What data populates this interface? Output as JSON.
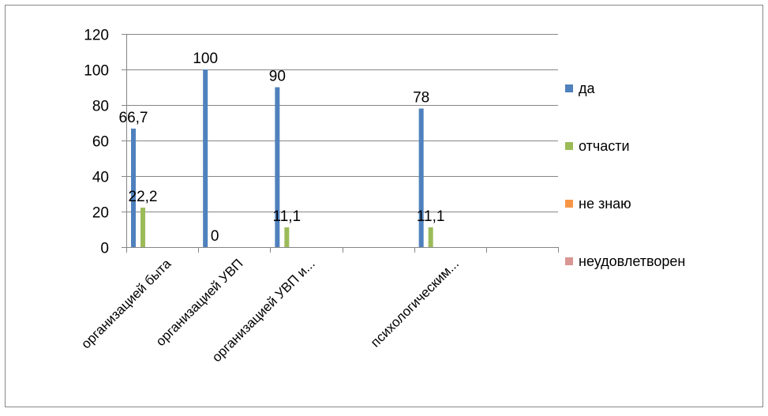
{
  "chart_data": {
    "type": "bar",
    "categories": [
      "организацией быта",
      "организацией УВП",
      "организацией УВП и...",
      "",
      "психологическим...",
      ""
    ],
    "series": [
      {
        "name": "да",
        "color": "#4F81BD",
        "values": [
          66.7,
          100,
          90,
          null,
          78,
          null
        ]
      },
      {
        "name": "отчасти",
        "color": "#9BBB59",
        "values": [
          22.2,
          0,
          11.1,
          null,
          11.1,
          null
        ]
      },
      {
        "name": "не знаю",
        "color": "#F79646",
        "values": [
          null,
          null,
          null,
          null,
          null,
          null
        ]
      },
      {
        "name": "неудовлетворен",
        "color": "#D99694",
        "values": [
          null,
          null,
          null,
          null,
          null,
          null
        ]
      }
    ],
    "data_labels": [
      {
        "series": 0,
        "category": 0,
        "text": "66,7"
      },
      {
        "series": 1,
        "category": 0,
        "text": "22,2"
      },
      {
        "series": 0,
        "category": 1,
        "text": "100"
      },
      {
        "series": 1,
        "category": 1,
        "text": "0"
      },
      {
        "series": 0,
        "category": 2,
        "text": "90"
      },
      {
        "series": 1,
        "category": 2,
        "text": "11,1"
      },
      {
        "series": 0,
        "category": 4,
        "text": "78"
      },
      {
        "series": 1,
        "category": 4,
        "text": "11,1"
      }
    ],
    "y_ticks": [
      "0",
      "20",
      "40",
      "60",
      "80",
      "100",
      "120"
    ],
    "ylim": [
      0,
      120
    ],
    "grid": true,
    "legend_position": "right",
    "title": "",
    "xlabel": "",
    "ylabel": ""
  }
}
